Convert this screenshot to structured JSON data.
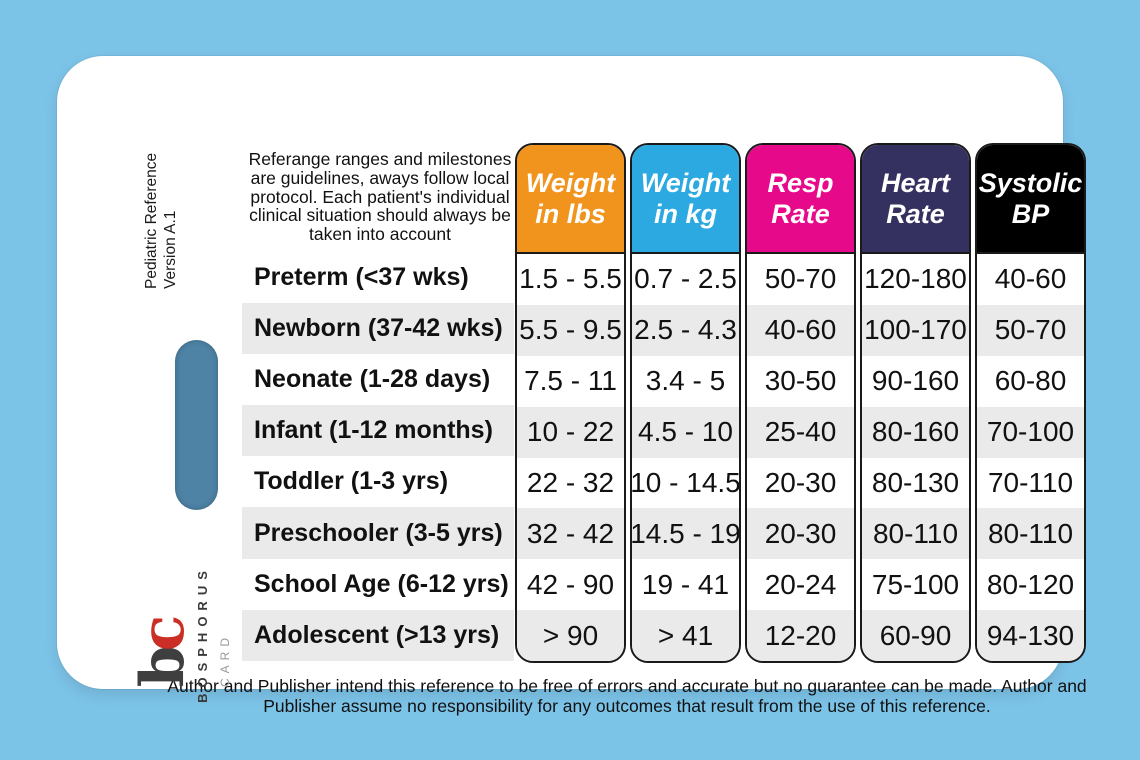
{
  "background_color": "#7CC3E8",
  "card": {
    "side_label": "Pediatric Reference\nVersion A.1",
    "top_disclaimer": "Referange ranges and milestones are guidelines, aways follow local protocol. Each patient's individual clinical situation should always be taken into account",
    "bottom_disclaimer": "Author and Publisher intend this reference to be free of errors and accurate but no guarantee can be made. Author and Publisher assume no responsibility for any outcomes that result from the use of this reference.",
    "slot_color": "#4E83A5",
    "logo": {
      "monogram_b": "b",
      "monogram_c": "c",
      "monogram_red": "#cb2e25",
      "monogram_dark": "#3f3f3f",
      "brand": "BOSPHORUS",
      "brand_sub": "CARD"
    }
  },
  "table": {
    "stripe_color": "#EAEAEA",
    "columns": [
      {
        "label": "Weight\nin lbs",
        "color": "#F1941D"
      },
      {
        "label": "Weight\nin kg",
        "color": "#2BA9E0"
      },
      {
        "label": "Resp\nRate",
        "color": "#E60A8A"
      },
      {
        "label": "Heart\nRate",
        "color": "#34305F"
      },
      {
        "label": "Systolic\nBP",
        "color": "#000000"
      }
    ],
    "rows": [
      {
        "age": "Preterm (<37 wks)",
        "values": [
          "1.5 - 5.5",
          "0.7 - 2.5",
          "50-70",
          "120-180",
          "40-60"
        ]
      },
      {
        "age": "Newborn (37-42 wks)",
        "values": [
          "5.5 - 9.5",
          "2.5 - 4.3",
          "40-60",
          "100-170",
          "50-70"
        ]
      },
      {
        "age": "Neonate (1-28 days)",
        "values": [
          "7.5 - 11",
          "3.4 - 5",
          "30-50",
          "90-160",
          "60-80"
        ]
      },
      {
        "age": "Infant (1-12 months)",
        "values": [
          "10 - 22",
          "4.5 - 10",
          "25-40",
          "80-160",
          "70-100"
        ]
      },
      {
        "age": "Toddler (1-3 yrs)",
        "values": [
          "22 - 32",
          "10 - 14.5",
          "20-30",
          "80-130",
          "70-110"
        ]
      },
      {
        "age": "Preschooler (3-5 yrs)",
        "values": [
          "32 - 42",
          "14.5 - 19",
          "20-30",
          "80-110",
          "80-110"
        ]
      },
      {
        "age": "School Age (6-12 yrs)",
        "values": [
          "42 - 90",
          "19 - 41",
          "20-24",
          "75-100",
          "80-120"
        ]
      },
      {
        "age": "Adolescent (>13 yrs)",
        "values": [
          "> 90",
          "> 41",
          "12-20",
          "60-90",
          "94-130"
        ]
      }
    ]
  }
}
